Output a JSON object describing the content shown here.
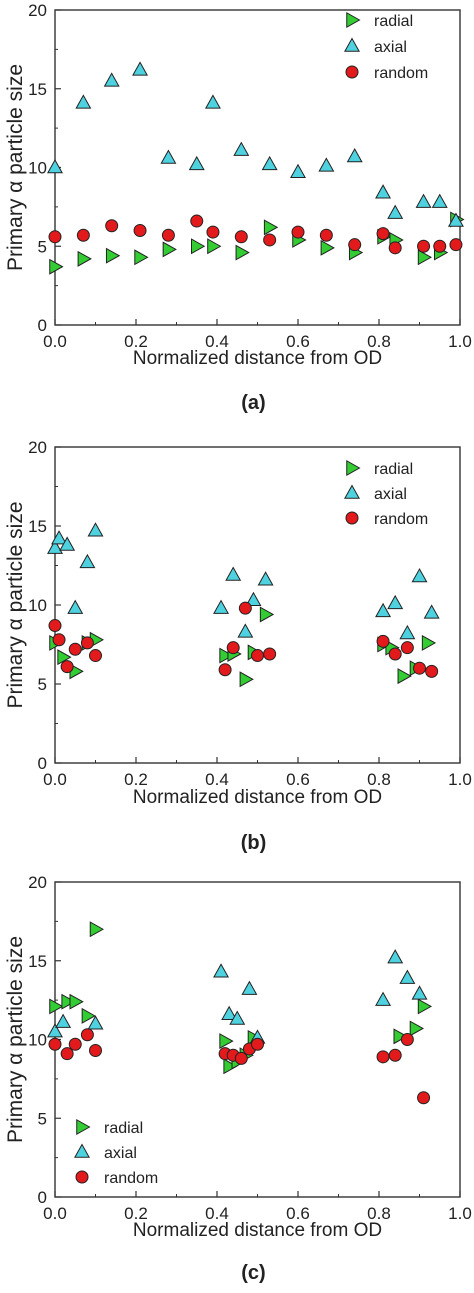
{
  "colors": {
    "radial": "#33cc33",
    "axial": "#4fd2e0",
    "random": "#e31a1c",
    "axes": "#333333"
  },
  "series_names": [
    "radial",
    "axial",
    "random"
  ],
  "chart_data": [
    {
      "type": "scatter",
      "panel_label": "(a)",
      "xlabel": "Normalized distance from OD",
      "ylabel": "Primary α particle size",
      "xlim": [
        0.0,
        1.0
      ],
      "ylim": [
        0,
        20
      ],
      "xticks": [
        "0.0",
        "0.2",
        "0.4",
        "0.6",
        "0.8",
        "1.0"
      ],
      "yticks": [
        "0",
        "5",
        "10",
        "15",
        "20"
      ],
      "grid": false,
      "legend_position": "top-right",
      "series": [
        {
          "name": "radial",
          "marker": "triangle-right",
          "x": [
            0.0,
            0.07,
            0.14,
            0.21,
            0.28,
            0.35,
            0.39,
            0.46,
            0.53,
            0.6,
            0.67,
            0.74,
            0.81,
            0.84,
            0.91,
            0.95,
            0.99
          ],
          "y": [
            3.7,
            4.2,
            4.4,
            4.3,
            4.8,
            5.0,
            5.0,
            4.6,
            6.2,
            5.4,
            4.9,
            4.6,
            5.6,
            5.4,
            4.3,
            4.6,
            6.7
          ]
        },
        {
          "name": "axial",
          "marker": "triangle-up",
          "x": [
            0.0,
            0.07,
            0.14,
            0.21,
            0.28,
            0.35,
            0.39,
            0.46,
            0.53,
            0.6,
            0.67,
            0.74,
            0.81,
            0.84,
            0.91,
            0.95,
            0.99
          ],
          "y": [
            10.0,
            14.1,
            15.5,
            16.2,
            10.6,
            10.2,
            14.1,
            11.1,
            10.2,
            9.7,
            10.1,
            10.7,
            8.4,
            7.1,
            7.8,
            7.8,
            6.6
          ]
        },
        {
          "name": "random",
          "marker": "circle",
          "x": [
            0.0,
            0.07,
            0.14,
            0.21,
            0.28,
            0.35,
            0.39,
            0.46,
            0.53,
            0.6,
            0.67,
            0.74,
            0.81,
            0.84,
            0.91,
            0.95,
            0.99
          ],
          "y": [
            5.6,
            5.7,
            6.3,
            6.0,
            5.7,
            6.6,
            5.9,
            5.6,
            5.4,
            5.9,
            5.7,
            5.1,
            5.8,
            4.9,
            5.0,
            5.0,
            5.1
          ]
        }
      ]
    },
    {
      "type": "scatter",
      "panel_label": "(b)",
      "xlabel": "Normalized distance from OD",
      "ylabel": "Primary α particle size",
      "xlim": [
        0.0,
        1.0
      ],
      "ylim": [
        0,
        20
      ],
      "xticks": [
        "0.0",
        "0.2",
        "0.4",
        "0.6",
        "0.8",
        "1.0"
      ],
      "yticks": [
        "0",
        "5",
        "10",
        "15",
        "20"
      ],
      "grid": false,
      "legend_position": "top-right",
      "series": [
        {
          "name": "radial",
          "marker": "triangle-right",
          "x": [
            0.0,
            0.02,
            0.05,
            0.08,
            0.1,
            0.42,
            0.44,
            0.47,
            0.49,
            0.52,
            0.81,
            0.83,
            0.86,
            0.89,
            0.92
          ],
          "y": [
            7.6,
            6.7,
            5.8,
            7.6,
            7.8,
            6.8,
            6.9,
            5.3,
            7.0,
            9.4,
            7.5,
            7.3,
            5.5,
            6.0,
            7.6
          ]
        },
        {
          "name": "axial",
          "marker": "triangle-up",
          "x": [
            0.0,
            0.01,
            0.03,
            0.05,
            0.08,
            0.1,
            0.41,
            0.44,
            0.47,
            0.49,
            0.52,
            0.81,
            0.84,
            0.87,
            0.9,
            0.93
          ],
          "y": [
            13.6,
            14.2,
            13.8,
            9.8,
            12.7,
            14.7,
            9.8,
            11.9,
            8.3,
            10.3,
            11.6,
            9.6,
            10.1,
            8.2,
            11.8,
            9.5
          ]
        },
        {
          "name": "random",
          "marker": "circle",
          "x": [
            0.0,
            0.01,
            0.03,
            0.05,
            0.08,
            0.1,
            0.42,
            0.44,
            0.47,
            0.5,
            0.53,
            0.81,
            0.84,
            0.87,
            0.9,
            0.93
          ],
          "y": [
            8.7,
            7.8,
            6.1,
            7.2,
            7.6,
            6.8,
            5.9,
            7.3,
            9.8,
            6.8,
            6.9,
            7.7,
            6.9,
            7.3,
            6.0,
            5.8
          ]
        }
      ]
    },
    {
      "type": "scatter",
      "panel_label": "(c)",
      "xlabel": "Normalized distance from OD",
      "ylabel": "Primary α particle size",
      "xlim": [
        0.0,
        1.0
      ],
      "ylim": [
        0,
        20
      ],
      "xticks": [
        "0.0",
        "0.2",
        "0.4",
        "0.6",
        "0.8",
        "1.0"
      ],
      "yticks": [
        "0",
        "5",
        "10",
        "15",
        "20"
      ],
      "grid": false,
      "legend_position": "bottom-left",
      "series": [
        {
          "name": "radial",
          "marker": "triangle-right",
          "x": [
            0.0,
            0.03,
            0.05,
            0.08,
            0.1,
            0.42,
            0.43,
            0.45,
            0.47,
            0.49,
            0.85,
            0.89,
            0.91
          ],
          "y": [
            12.1,
            12.4,
            12.4,
            11.5,
            17.0,
            9.9,
            8.3,
            8.6,
            9.0,
            10.1,
            10.2,
            10.7,
            12.1
          ]
        },
        {
          "name": "axial",
          "marker": "triangle-up",
          "x": [
            0.0,
            0.02,
            0.1,
            0.41,
            0.43,
            0.45,
            0.48,
            0.5,
            0.81,
            0.84,
            0.87,
            0.9
          ],
          "y": [
            10.5,
            11.1,
            11.0,
            14.3,
            11.6,
            11.3,
            13.2,
            10.1,
            12.5,
            15.2,
            13.9,
            12.9
          ]
        },
        {
          "name": "random",
          "marker": "circle",
          "x": [
            0.0,
            0.03,
            0.05,
            0.08,
            0.1,
            0.42,
            0.44,
            0.46,
            0.48,
            0.5,
            0.81,
            0.84,
            0.87,
            0.91
          ],
          "y": [
            9.7,
            9.1,
            9.7,
            10.3,
            9.3,
            9.1,
            9.0,
            8.8,
            9.4,
            9.7,
            8.9,
            9.0,
            10.0,
            6.3
          ]
        }
      ]
    }
  ]
}
